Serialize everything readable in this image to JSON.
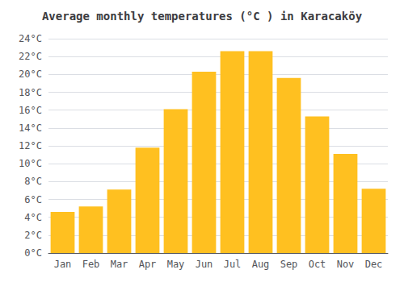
{
  "chart_data": {
    "type": "bar",
    "title": "Average monthly temperatures (°C ) in Karacaköy",
    "categories": [
      "Jan",
      "Feb",
      "Mar",
      "Apr",
      "May",
      "Jun",
      "Jul",
      "Aug",
      "Sep",
      "Oct",
      "Nov",
      "Dec"
    ],
    "values": [
      4.6,
      5.2,
      7.1,
      11.8,
      16.1,
      20.3,
      22.6,
      22.6,
      19.6,
      15.3,
      11.1,
      7.2
    ],
    "color": "#FFC020",
    "ylim": [
      0,
      24
    ],
    "yticks": [
      {
        "value": 0,
        "label": "0°C"
      },
      {
        "value": 2,
        "label": "2°C"
      },
      {
        "value": 4,
        "label": "4°C"
      },
      {
        "value": 6,
        "label": "6°C"
      },
      {
        "value": 8,
        "label": "8°C"
      },
      {
        "value": 10,
        "label": "10°C"
      },
      {
        "value": 12,
        "label": "12°C"
      },
      {
        "value": 14,
        "label": "14°C"
      },
      {
        "value": 16,
        "label": "16°C"
      },
      {
        "value": 18,
        "label": "18°C"
      },
      {
        "value": 20,
        "label": "20°C"
      },
      {
        "value": 22,
        "label": "22°C"
      },
      {
        "value": 24,
        "label": "24°C"
      }
    ],
    "grid": true
  }
}
